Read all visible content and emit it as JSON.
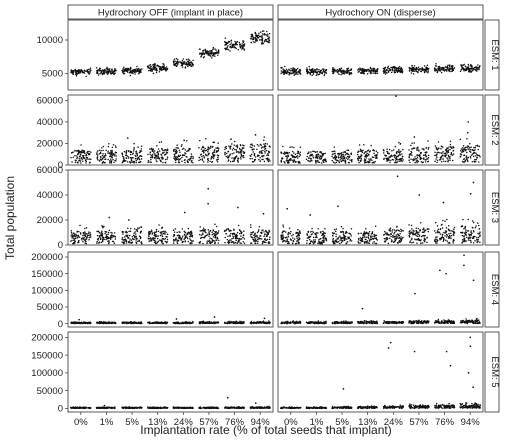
{
  "chart_data": {
    "type": "scatter",
    "ylabel": "Total population",
    "xlabel": "Implantation rate (% of total seeds that implant)",
    "columns": [
      "Hydrochory OFF (implant in place)",
      "Hydrochory ON (disperse)"
    ],
    "rows": [
      "ESM: 1",
      "ESM: 2",
      "ESM: 3",
      "ESM: 4",
      "ESM: 5"
    ],
    "categories": [
      "0%",
      "1%",
      "5%",
      "13%",
      "24%",
      "57%",
      "76%",
      "94%"
    ],
    "row_axes": [
      {
        "ylim": [
          2500,
          13000
        ],
        "ticks": [
          5000,
          10000
        ]
      },
      {
        "ylim": [
          0,
          65000
        ],
        "ticks": [
          0,
          20000,
          40000,
          60000
        ]
      },
      {
        "ylim": [
          0,
          60000
        ],
        "ticks": [
          0,
          20000,
          40000,
          60000
        ]
      },
      {
        "ylim": [
          -10000,
          215000
        ],
        "ticks": [
          0,
          50000,
          100000,
          150000,
          200000
        ]
      },
      {
        "ylim": [
          -10000,
          215000
        ],
        "ticks": [
          0,
          50000,
          100000,
          150000,
          200000
        ]
      }
    ],
    "clusters": [
      {
        "row": "ESM: 1",
        "column": "Hydrochory OFF (implant in place)",
        "median": [
          5200,
          5300,
          5400,
          5800,
          6500,
          8000,
          9200,
          10300
        ],
        "spread": [
          500,
          500,
          500,
          600,
          600,
          700,
          800,
          900
        ],
        "outliers": []
      },
      {
        "row": "ESM: 1",
        "column": "Hydrochory ON (disperse)",
        "median": [
          5300,
          5300,
          5300,
          5400,
          5500,
          5600,
          5700,
          5800
        ],
        "spread": [
          500,
          500,
          500,
          500,
          500,
          500,
          500,
          600
        ],
        "outliers": []
      },
      {
        "row": "ESM: 2",
        "column": "Hydrochory OFF (implant in place)",
        "median": [
          4500,
          4500,
          4800,
          5000,
          5500,
          6000,
          6500,
          7000
        ],
        "spread": [
          12000,
          12000,
          12000,
          13000,
          14000,
          15000,
          16000,
          17000
        ],
        "outliers": [
          {
            "category": "5%",
            "value": 25000
          },
          {
            "category": "24%",
            "value": 23000
          },
          {
            "category": "57%",
            "value": 21000
          },
          {
            "category": "76%",
            "value": 24000
          },
          {
            "category": "94%",
            "value": 28000
          }
        ]
      },
      {
        "row": "ESM: 2",
        "column": "Hydrochory ON (disperse)",
        "median": [
          4500,
          4500,
          4600,
          4800,
          5000,
          5500,
          6000,
          6500
        ],
        "spread": [
          11000,
          11000,
          12000,
          12000,
          13000,
          14000,
          15000,
          16000
        ],
        "outliers": [
          {
            "category": "24%",
            "value": 64000
          },
          {
            "category": "57%",
            "value": 26000
          },
          {
            "category": "94%",
            "value": 30000
          },
          {
            "category": "94%",
            "value": 40000
          }
        ]
      },
      {
        "row": "ESM: 3",
        "column": "Hydrochory OFF (implant in place)",
        "median": [
          2500,
          2500,
          2500,
          2600,
          2800,
          3000,
          3000,
          3000
        ],
        "spread": [
          10000,
          10000,
          10000,
          10000,
          10000,
          11000,
          11000,
          11000
        ],
        "outliers": [
          {
            "category": "1%",
            "value": 22000
          },
          {
            "category": "5%",
            "value": 20000
          },
          {
            "category": "13%",
            "value": 14000
          },
          {
            "category": "24%",
            "value": 26000
          },
          {
            "category": "57%",
            "value": 45000
          },
          {
            "category": "57%",
            "value": 33000
          },
          {
            "category": "76%",
            "value": 30000
          },
          {
            "category": "94%",
            "value": 25000
          }
        ]
      },
      {
        "row": "ESM: 3",
        "column": "Hydrochory ON (disperse)",
        "median": [
          2500,
          2500,
          2500,
          2600,
          2800,
          3000,
          3200,
          3500
        ],
        "spread": [
          10000,
          10000,
          10000,
          10000,
          11000,
          12000,
          13000,
          14000
        ],
        "outliers": [
          {
            "category": "0%",
            "value": 29000
          },
          {
            "category": "1%",
            "value": 24000
          },
          {
            "category": "5%",
            "value": 31000
          },
          {
            "category": "24%",
            "value": 55000
          },
          {
            "category": "57%",
            "value": 40000
          },
          {
            "category": "76%",
            "value": 34000
          },
          {
            "category": "94%",
            "value": 50000
          },
          {
            "category": "94%",
            "value": 41000
          }
        ]
      },
      {
        "row": "ESM: 4",
        "column": "Hydrochory OFF (implant in place)",
        "median": [
          1000,
          1000,
          1000,
          1000,
          1000,
          1200,
          1200,
          1200
        ],
        "spread": [
          4000,
          4000,
          4000,
          4000,
          4000,
          5000,
          5000,
          5000
        ],
        "outliers": [
          {
            "category": "0%",
            "value": 12000
          },
          {
            "category": "24%",
            "value": 14000
          },
          {
            "category": "57%",
            "value": 20000
          },
          {
            "category": "94%",
            "value": 16000
          }
        ]
      },
      {
        "row": "ESM: 4",
        "column": "Hydrochory ON (disperse)",
        "median": [
          1000,
          1000,
          1000,
          1000,
          1200,
          1500,
          1500,
          1800
        ],
        "spread": [
          5000,
          5000,
          5000,
          6000,
          6000,
          8000,
          8000,
          10000
        ],
        "outliers": [
          {
            "category": "13%",
            "value": 45000
          },
          {
            "category": "57%",
            "value": 90000
          },
          {
            "category": "76%",
            "value": 150000
          },
          {
            "category": "76%",
            "value": 160000
          },
          {
            "category": "94%",
            "value": 175000
          },
          {
            "category": "94%",
            "value": 205000
          },
          {
            "category": "94%",
            "value": 130000
          }
        ]
      },
      {
        "row": "ESM: 5",
        "column": "Hydrochory OFF (implant in place)",
        "median": [
          500,
          500,
          500,
          500,
          500,
          600,
          600,
          700
        ],
        "spread": [
          3000,
          3000,
          3000,
          3000,
          3000,
          3500,
          3500,
          4000
        ],
        "outliers": [
          {
            "category": "1%",
            "value": 8000
          },
          {
            "category": "76%",
            "value": 30000
          },
          {
            "category": "94%",
            "value": 15000
          }
        ]
      },
      {
        "row": "ESM: 5",
        "column": "Hydrochory ON (disperse)",
        "median": [
          500,
          500,
          600,
          700,
          900,
          1200,
          1500,
          1800
        ],
        "spread": [
          3000,
          3000,
          4000,
          5000,
          6000,
          8000,
          9000,
          10000
        ],
        "outliers": [
          {
            "category": "5%",
            "value": 55000
          },
          {
            "category": "24%",
            "value": 185000
          },
          {
            "category": "24%",
            "value": 170000
          },
          {
            "category": "57%",
            "value": 160000
          },
          {
            "category": "76%",
            "value": 160000
          },
          {
            "category": "76%",
            "value": 120000
          },
          {
            "category": "94%",
            "value": 200000
          },
          {
            "category": "94%",
            "value": 175000
          },
          {
            "category": "94%",
            "value": 100000
          },
          {
            "category": "94%",
            "value": 60000
          }
        ]
      }
    ]
  }
}
